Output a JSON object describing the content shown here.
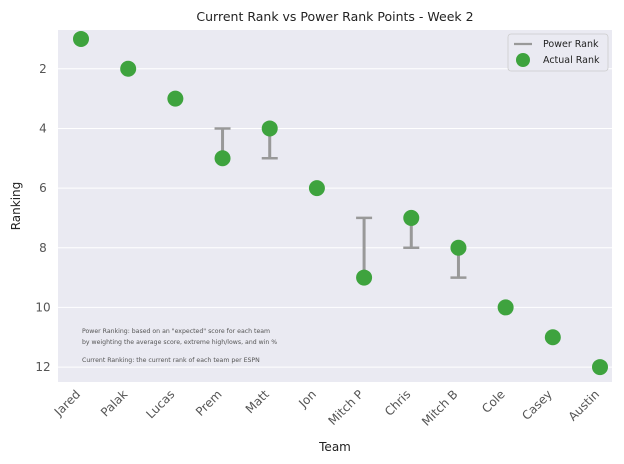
{
  "chart_data": {
    "type": "scatter",
    "title": "Current Rank vs Power Rank Points - Week 2",
    "xlabel": "Team",
    "ylabel": "Ranking",
    "categories": [
      "Jared",
      "Palak",
      "Lucas",
      "Prem",
      "Matt",
      "Jon",
      "Mitch P",
      "Chris",
      "Mitch B",
      "Cole",
      "Casey",
      "Austin"
    ],
    "series": [
      {
        "name": "Power Rank",
        "marker": "errorbar",
        "values": [
          1,
          2,
          3,
          4,
          5,
          6,
          7,
          8,
          9,
          10,
          11,
          12
        ]
      },
      {
        "name": "Actual Rank",
        "marker": "circle",
        "values": [
          1,
          2,
          3,
          5,
          4,
          6,
          9,
          7,
          8,
          10,
          11,
          12
        ]
      }
    ],
    "y_inverted": true,
    "ylim": [
      12.5,
      0.7
    ],
    "yticks": [
      2,
      4,
      6,
      8,
      10,
      12
    ],
    "grid": true,
    "legend_position": "top-right",
    "annotations": [
      "Power Ranking: based on an \"expected\" score for each team",
      "by weighting the average score, extreme high/lows, and win %",
      "Current Ranking: the current rank of each team per ESPN"
    ],
    "colors": {
      "plot_background": "#eaeaf2",
      "power_rank": "#999999",
      "actual_rank": "#3ea33e",
      "grid": "#ffffff"
    }
  }
}
